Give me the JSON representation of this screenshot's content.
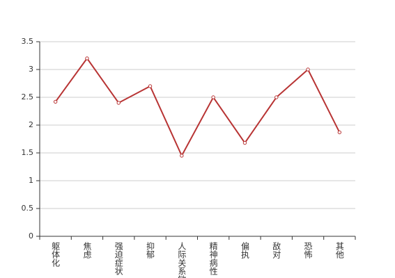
{
  "chart_data": {
    "type": "line",
    "categories": [
      "躯体化",
      "焦虑",
      "强迫症状",
      "抑郁",
      "人际关系敏感",
      "精神病性",
      "偏执",
      "敌对",
      "恐怖",
      "其他"
    ],
    "series": [
      {
        "color": "#b83434",
        "values": [
          2.42,
          3.2,
          2.4,
          2.7,
          1.45,
          2.5,
          1.68,
          2.5,
          3.0,
          1.87
        ]
      }
    ],
    "ylim": [
      0,
      3.5
    ],
    "yticks": [
      0,
      0.5,
      1,
      1.5,
      2,
      2.5,
      3,
      3.5
    ],
    "grid": true
  }
}
